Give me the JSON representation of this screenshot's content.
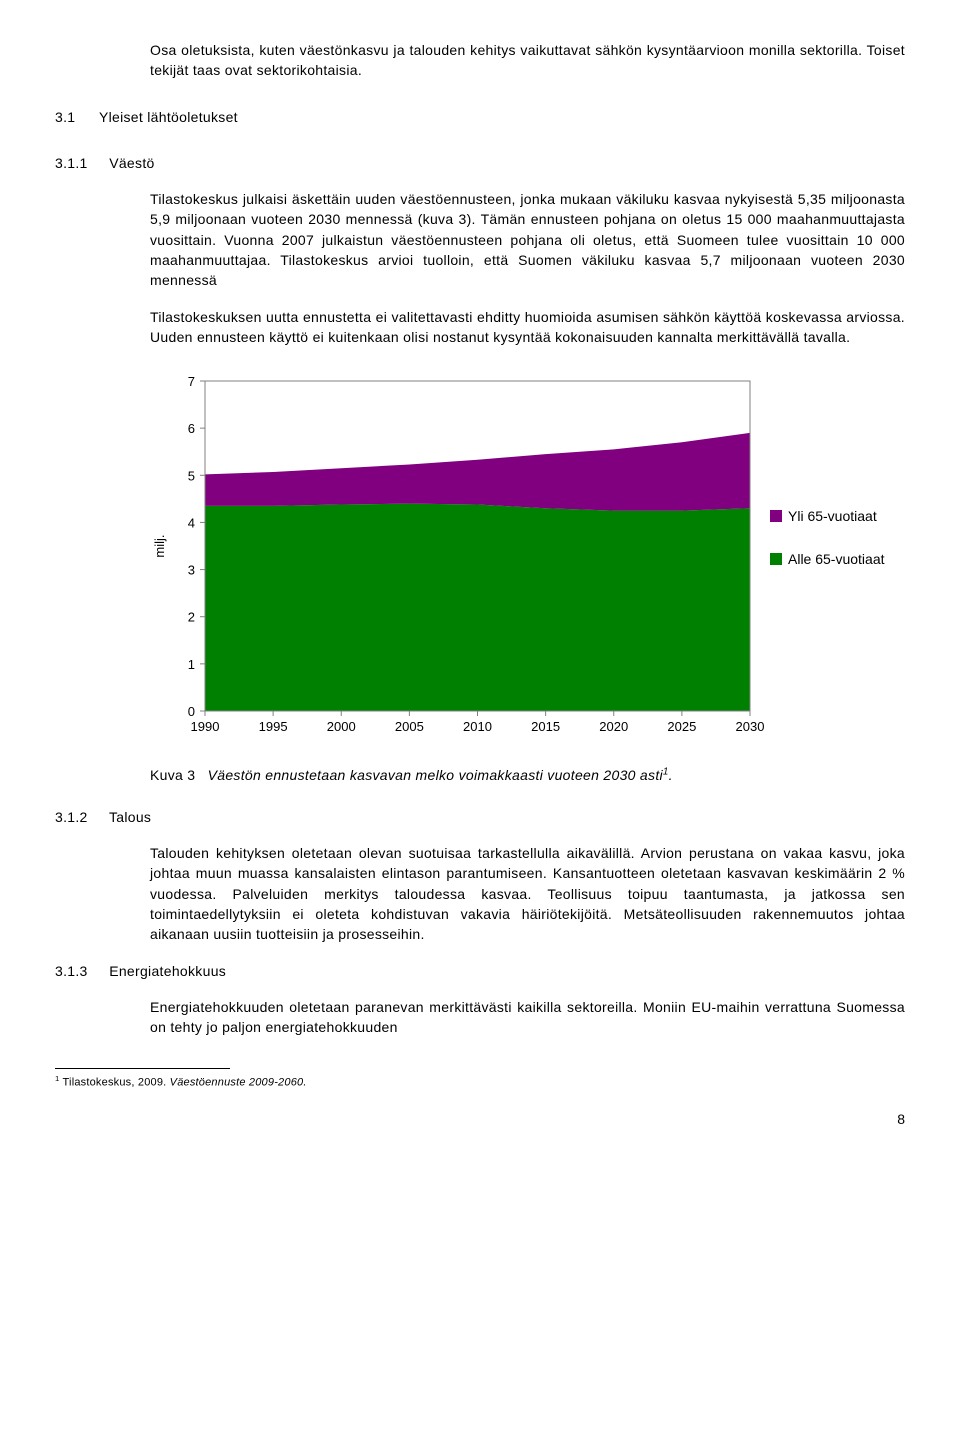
{
  "intro": "Osa oletuksista, kuten väestönkasvu ja talouden kehitys vaikuttavat sähkön kysyntäarvioon monilla sektorilla. Toiset tekijät taas ovat sektorikohtaisia.",
  "s31": {
    "num": "3.1",
    "title": "Yleiset lähtöoletukset"
  },
  "s311": {
    "num": "3.1.1",
    "title": "Väestö",
    "p1": "Tilastokeskus julkaisi äskettäin uuden väestöennusteen, jonka mukaan väkiluku kasvaa nykyisestä 5,35 miljoonasta 5,9 miljoonaan vuoteen 2030 mennessä (kuva 3). Tämän ennusteen pohjana on oletus 15 000 maahanmuuttajasta vuosittain. Vuonna 2007 julkaistun väestöennusteen pohjana oli oletus, että Suomeen tulee vuosittain 10 000 maahanmuuttajaa. Tilastokeskus arvioi tuolloin, että Suomen väkiluku kasvaa 5,7 miljoonaan vuoteen 2030 mennessä",
    "p2": "Tilastokeskuksen uutta ennustetta ei valitettavasti ehditty huomioida asumisen sähkön käyttöä koskevassa arviossa. Uuden ennusteen käyttö ei kuitenkaan olisi nostanut kysyntää kokonaisuuden kannalta merkittävällä tavalla."
  },
  "chart": {
    "type": "stacked-area",
    "ylabel": "milj.",
    "ylim": [
      0,
      7
    ],
    "ytick_step": 1,
    "xlim": [
      1990,
      2030
    ],
    "xtick_step": 5,
    "x_labels": [
      "1990",
      "1995",
      "2000",
      "2005",
      "2010",
      "2015",
      "2020",
      "2025",
      "2030"
    ],
    "series": [
      {
        "name": "Alle 65-vuotiaat",
        "color": "#008000",
        "values": [
          4.35,
          4.35,
          4.38,
          4.4,
          4.38,
          4.3,
          4.25,
          4.25,
          4.3
        ]
      },
      {
        "name": "Yli 65-vuotiaat",
        "color": "#800080",
        "values": [
          0.67,
          0.72,
          0.77,
          0.83,
          0.95,
          1.15,
          1.3,
          1.45,
          1.6
        ]
      }
    ],
    "bg": "#ffffff",
    "axis_color": "#808080",
    "tick_color": "#808080",
    "label_fontsize": 13
  },
  "legend": {
    "s1": {
      "label": "Yli 65-vuotiaat",
      "color": "#800080"
    },
    "s2": {
      "label": "Alle 65-vuotiaat",
      "color": "#008000"
    }
  },
  "caption": {
    "pre": "Kuva 3",
    "text": "Väestön ennustetaan kasvavan melko voimakkaasti vuoteen 2030 asti",
    "sup": "1",
    "tail": "."
  },
  "s312": {
    "num": "3.1.2",
    "title": "Talous",
    "p1": "Talouden kehityksen oletetaan olevan suotuisaa tarkastellulla aikavälillä. Arvion perustana on vakaa kasvu, joka johtaa muun muassa kansalaisten elintason parantumiseen. Kansantuotteen oletetaan kasvavan keskimäärin 2 % vuodessa. Palveluiden merkitys taloudessa kasvaa. Teollisuus toipuu taantumasta, ja jatkossa sen toimintaedellytyksiin ei oleteta kohdistuvan vakavia häiriötekijöitä. Metsäteollisuuden rakennemuutos johtaa aikanaan uusiin tuotteisiin ja prosesseihin."
  },
  "s313": {
    "num": "3.1.3",
    "title": "Energiatehokkuus",
    "p1": "Energiatehokkuuden oletetaan paranevan merkittävästi kaikilla sektoreilla. Moniin EU-maihin verrattuna Suomessa on tehty jo paljon energiatehokkuuden"
  },
  "footnote": {
    "sup": "1",
    "text": " Tilastokeskus, 2009. ",
    "src": "Väestöennuste 2009-2060."
  },
  "page": "8"
}
